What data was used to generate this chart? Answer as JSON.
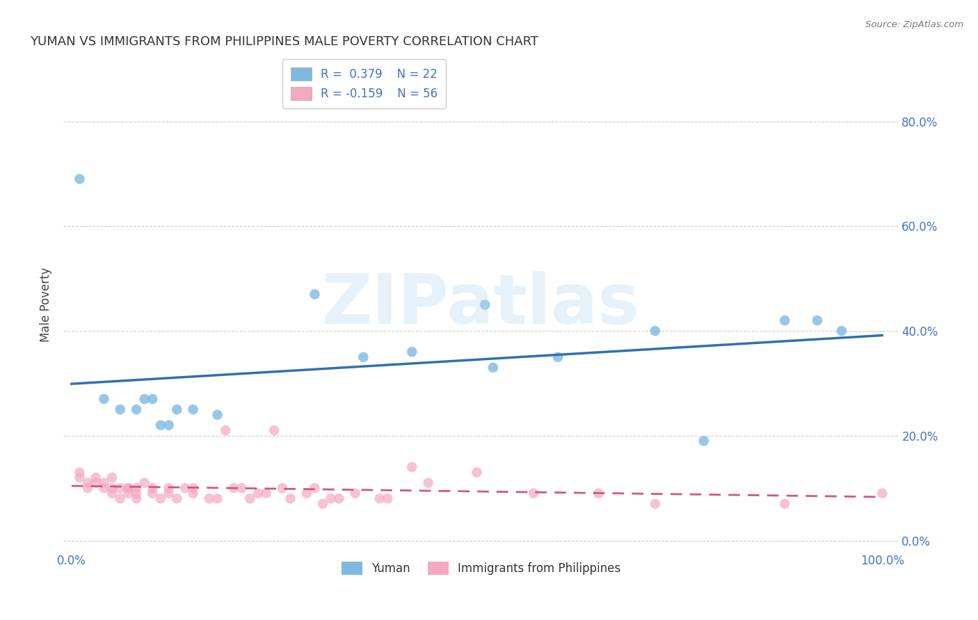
{
  "title": "YUMAN VS IMMIGRANTS FROM PHILIPPINES MALE POVERTY CORRELATION CHART",
  "source": "Source: ZipAtlas.com",
  "ylabel_label": "Male Poverty",
  "x_tick_labels": [
    "0.0%",
    "100.0%"
  ],
  "y_tick_labels_right": [
    "0.0%",
    "20.0%",
    "40.0%",
    "60.0%",
    "80.0%"
  ],
  "y_tick_values": [
    0.0,
    0.2,
    0.4,
    0.6,
    0.8
  ],
  "xlim": [
    -0.01,
    1.02
  ],
  "ylim": [
    -0.02,
    0.92
  ],
  "legend_label1": "Yuman",
  "legend_label2": "Immigrants from Philippines",
  "R1": 0.379,
  "N1": 22,
  "R2": -0.159,
  "N2": 56,
  "color_blue": "#7fb8e0",
  "color_pink": "#f5a8c0",
  "line_color_blue": "#3070b0",
  "line_color_pink": "#d05878",
  "background_color": "#ffffff",
  "watermark": "ZIPatlas",
  "yuman_x": [
    0.01,
    0.04,
    0.06,
    0.08,
    0.09,
    0.1,
    0.11,
    0.12,
    0.13,
    0.15,
    0.18,
    0.3,
    0.36,
    0.42,
    0.51,
    0.52,
    0.6,
    0.72,
    0.78,
    0.88,
    0.92,
    0.95
  ],
  "yuman_y": [
    0.69,
    0.27,
    0.25,
    0.25,
    0.27,
    0.27,
    0.22,
    0.22,
    0.25,
    0.25,
    0.24,
    0.47,
    0.35,
    0.36,
    0.45,
    0.33,
    0.35,
    0.4,
    0.19,
    0.42,
    0.42,
    0.4
  ],
  "phil_x": [
    0.01,
    0.01,
    0.02,
    0.02,
    0.03,
    0.03,
    0.04,
    0.04,
    0.05,
    0.05,
    0.05,
    0.06,
    0.06,
    0.07,
    0.07,
    0.07,
    0.08,
    0.08,
    0.08,
    0.09,
    0.1,
    0.1,
    0.11,
    0.12,
    0.12,
    0.13,
    0.14,
    0.15,
    0.15,
    0.17,
    0.18,
    0.19,
    0.2,
    0.21,
    0.22,
    0.23,
    0.24,
    0.25,
    0.26,
    0.27,
    0.29,
    0.3,
    0.31,
    0.32,
    0.33,
    0.35,
    0.38,
    0.39,
    0.42,
    0.44,
    0.5,
    0.57,
    0.65,
    0.72,
    0.88,
    1.0
  ],
  "phil_y": [
    0.12,
    0.13,
    0.11,
    0.1,
    0.11,
    0.12,
    0.11,
    0.1,
    0.09,
    0.1,
    0.12,
    0.1,
    0.08,
    0.1,
    0.1,
    0.09,
    0.1,
    0.09,
    0.08,
    0.11,
    0.1,
    0.09,
    0.08,
    0.1,
    0.09,
    0.08,
    0.1,
    0.1,
    0.09,
    0.08,
    0.08,
    0.21,
    0.1,
    0.1,
    0.08,
    0.09,
    0.09,
    0.21,
    0.1,
    0.08,
    0.09,
    0.1,
    0.07,
    0.08,
    0.08,
    0.09,
    0.08,
    0.08,
    0.14,
    0.11,
    0.13,
    0.09,
    0.09,
    0.07,
    0.07,
    0.09
  ]
}
